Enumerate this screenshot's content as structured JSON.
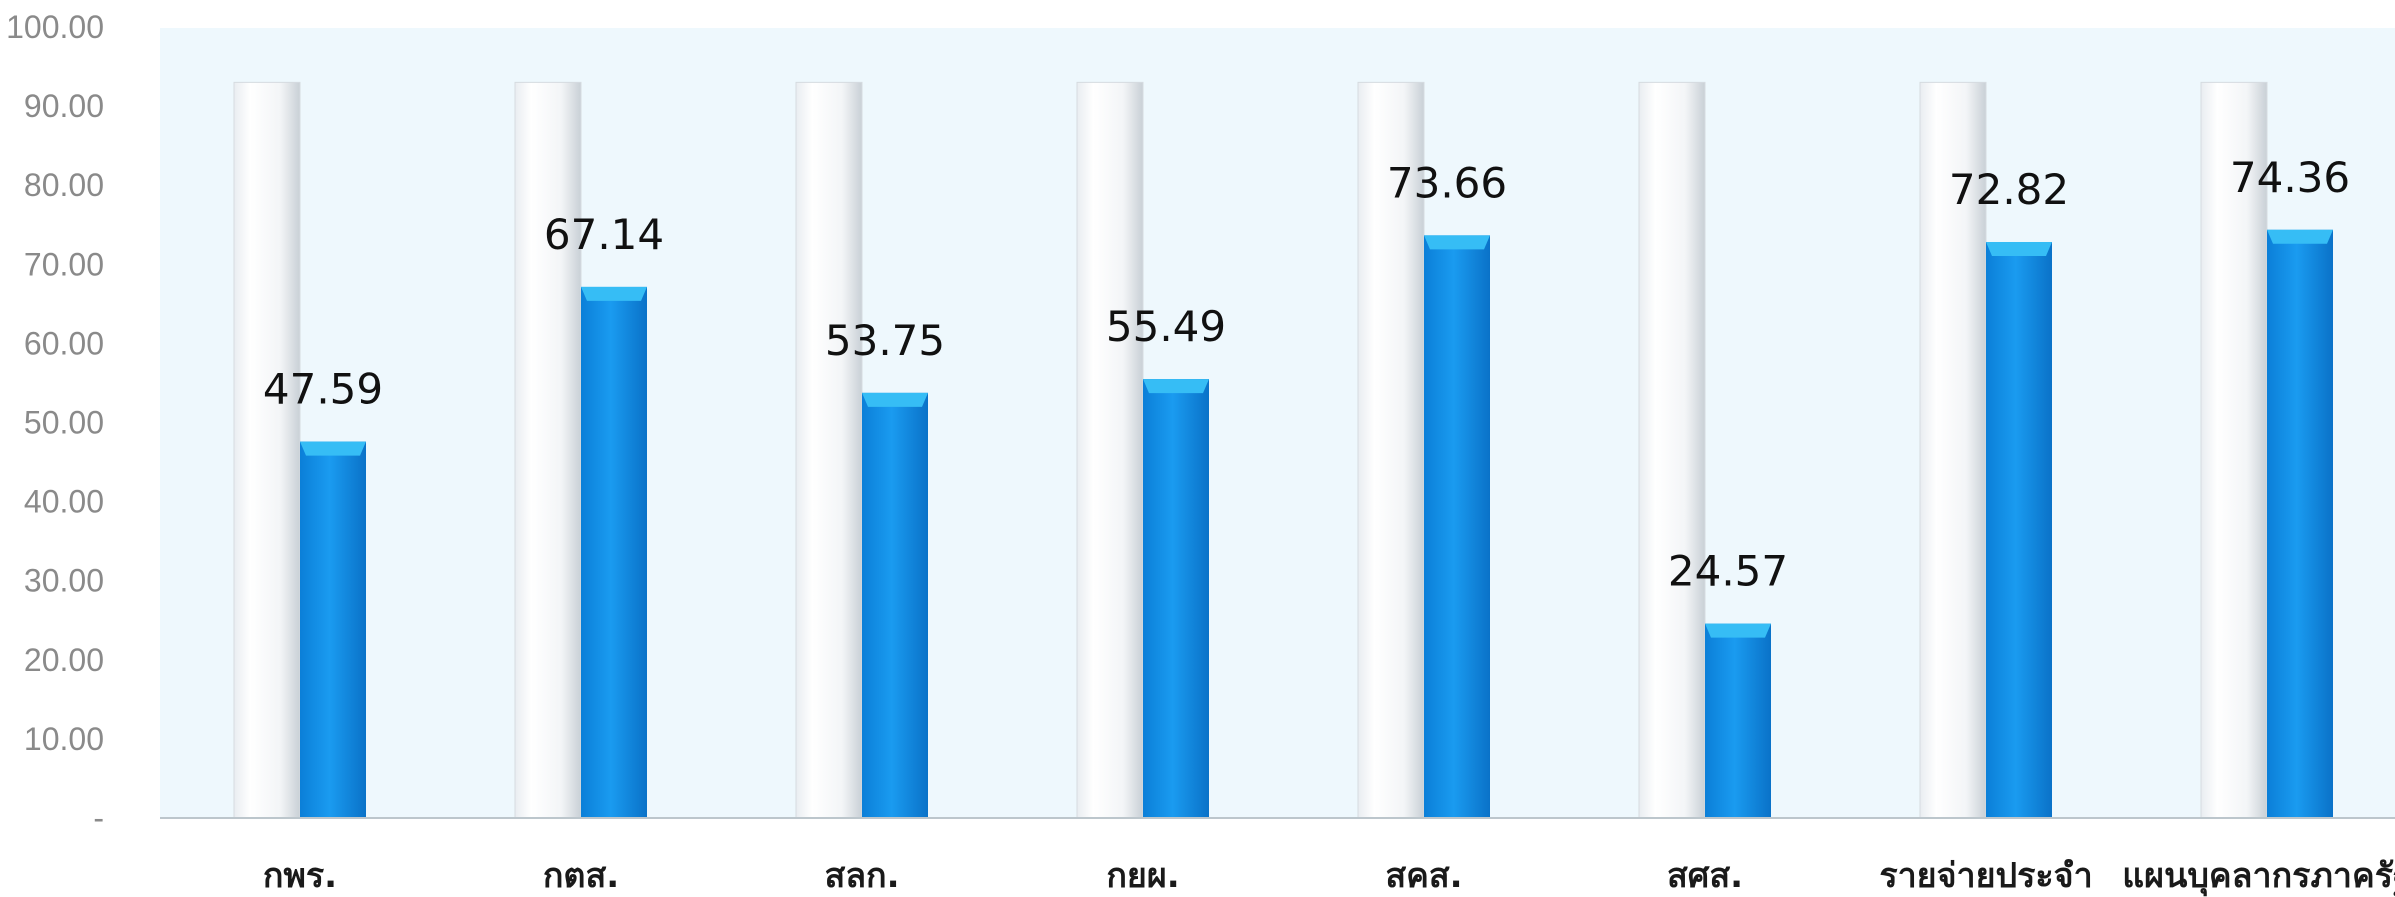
{
  "chart_data": {
    "type": "bar",
    "categories": [
      "กพร.",
      "กตส.",
      "สลก.",
      "กยผ.",
      "สคส.",
      "สศส.",
      "รายจ่ายประจำ",
      "แผนบุคลากรภาครัฐ"
    ],
    "series": [
      {
        "values": [
          47.59,
          67.14,
          53.75,
          55.49,
          73.66,
          24.57,
          72.82,
          74.36
        ]
      }
    ],
    "data_labels": [
      "47.59",
      "67.14",
      "53.75",
      "55.49",
      "73.66",
      "24.57",
      "72.82",
      "74.36"
    ],
    "target_value": 93,
    "ylim": [
      0,
      100
    ],
    "yticks": [
      "-",
      "10.00",
      "20.00",
      "30.00",
      "40.00",
      "50.00",
      "60.00",
      "70.00",
      "80.00",
      "90.00",
      "100.00"
    ],
    "grid": false,
    "colors": {
      "bar": "#1592ea",
      "bar_top": "#36bdf5",
      "track": "#f4f6f8",
      "plot_bg": "#eef8fd",
      "axis": "#bcc6cc"
    }
  }
}
